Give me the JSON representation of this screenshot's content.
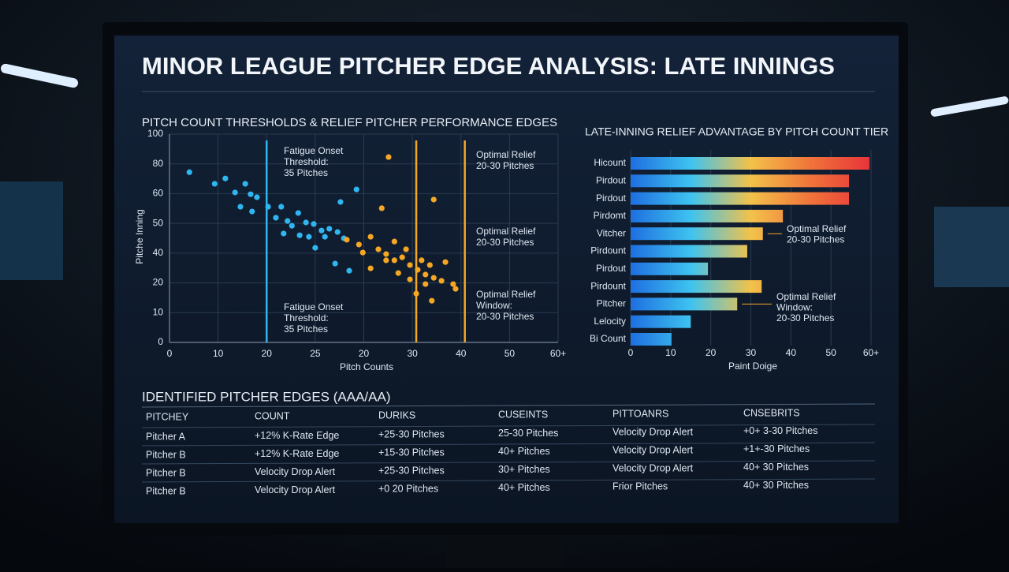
{
  "header": {
    "title": "MINOR LEAGUE PITCHER EDGE ANALYSIS: LATE INNINGS"
  },
  "chart_data": [
    {
      "type": "scatter",
      "title": "PITCH COUNT THRESHOLDS & RELIEF PITCHER PERFORMANCE EDGES",
      "x_label": "Pitch Counts",
      "y_label": "Pitche Inning",
      "xlim": [
        0,
        80
      ],
      "xticks": [
        0,
        10,
        20,
        {
          "value": 30,
          "label": "25"
        },
        {
          "value": 40,
          "label": "20"
        },
        {
          "value": 50,
          "label": "30"
        },
        {
          "value": 60,
          "label": "40"
        },
        {
          "value": 70,
          "label": "50"
        },
        {
          "value": 80,
          "label": "60+"
        }
      ],
      "ylim": [
        0,
        70
      ],
      "yticks": [
        0,
        10,
        20,
        {
          "value": 30,
          "label": "40"
        },
        {
          "value": 40,
          "label": "50"
        },
        {
          "value": 50,
          "label": "60"
        },
        {
          "value": 60,
          "label": "80"
        },
        {
          "value": 70,
          "label": "100"
        }
      ],
      "grid": true,
      "series": [
        {
          "color": "#2fb6f0",
          "x": [
            4.1,
            9.3,
            11.5,
            13.5,
            15.6,
            16.7,
            18.0,
            14.6,
            17.0,
            20.3,
            21.9,
            23.0,
            24.3,
            26.5,
            28.1,
            29.7,
            31.3,
            32.9,
            26.8,
            28.7,
            32.0,
            34.6,
            35.9,
            38.5,
            30.0,
            34.1,
            37.0,
            35.2,
            25.2,
            23.5
          ],
          "y": [
            57.2,
            53.3,
            55.1,
            50.4,
            53.3,
            49.8,
            48.8,
            45.6,
            44.0,
            45.6,
            41.9,
            45.6,
            40.8,
            43.5,
            40.3,
            39.8,
            37.6,
            38.2,
            36.0,
            35.5,
            35.5,
            37.1,
            35.0,
            51.4,
            31.8,
            26.5,
            24.1,
            47.2,
            39.2,
            36.6
          ]
        },
        {
          "color": "#f5a623",
          "x": [
            45.1,
            43.7,
            54.4,
            36.5,
            39.0,
            41.4,
            43.0,
            44.6,
            46.3,
            47.9,
            49.5,
            51.1,
            52.7,
            54.4,
            56.0,
            41.4,
            46.3,
            48.7,
            51.9,
            53.6,
            56.8,
            58.4,
            54.0,
            50.8,
            47.1,
            44.6,
            39.8,
            52.7,
            58.9,
            49.5
          ],
          "y": [
            62.3,
            45.1,
            48.0,
            34.5,
            32.9,
            35.5,
            31.3,
            29.7,
            27.6,
            28.6,
            26.0,
            24.4,
            22.8,
            21.7,
            20.7,
            24.9,
            33.9,
            31.3,
            27.6,
            26.0,
            27.0,
            19.6,
            14.0,
            16.4,
            23.3,
            27.6,
            30.2,
            19.6,
            18.0,
            21.2
          ]
        }
      ],
      "vlines": [
        {
          "x": 20,
          "color": "#2fb6f0"
        },
        {
          "x": 50.8,
          "color": "#f5a623"
        },
        {
          "x": 60.8,
          "color": "#f5a623"
        }
      ],
      "annotations": [
        [
          "Fatigue Onset",
          "Threshold:",
          "35 Pitches"
        ],
        [
          "Fatigue Onset",
          "Threshold:",
          "35 Pitches"
        ],
        [
          "Optimal Relief",
          "20-30 Pitches"
        ],
        [
          "Optimal Relief",
          "20-30 Pitches"
        ],
        [
          "Optimal Relief",
          "Window:",
          "20-30 Pitches"
        ]
      ]
    },
    {
      "type": "hbar",
      "title": "LATE-INNING RELIEF ADVANTAGE BY PITCH COUNT TIER",
      "x_label": "Paint Doige",
      "categories": [
        "Hicount",
        "Pirdout",
        "Pirdout",
        "Pirdomt",
        "Vitcher",
        "Pirdount",
        "Pirdout",
        "Pirdount",
        "Pitcher",
        "Lelocity",
        "Bi Count"
      ],
      "values": [
        59.6,
        54.5,
        54.5,
        38.0,
        33.0,
        29.1,
        19.3,
        32.7,
        26.6,
        15.0,
        10.2
      ],
      "gradient": [
        "#1e6fe0",
        "#3ec3f0",
        "#f3c24a",
        "#f0733a",
        "#e8333a"
      ],
      "xlim": [
        0,
        60
      ],
      "xticks": [
        0,
        10,
        20,
        30,
        40,
        50,
        {
          "value": 60,
          "label": "60+"
        }
      ],
      "annotations": [
        [
          "Optimal Relief",
          "20-30 Pitches"
        ],
        [
          "Optimal Relief",
          "Window:",
          "20-30 Pitches"
        ]
      ]
    }
  ],
  "table": {
    "title": "IDENTIFIED PITCHER EDGES (AAA/AA)",
    "headers": [
      "PITCHEY",
      "COUNT",
      "DURIKS",
      "CUSEINTS",
      "PITTOANRS",
      "CNSEBRITS"
    ],
    "rows": [
      [
        "Pitcher A",
        "+12% K-Rate Edge",
        "+25-30 Pitches",
        "25-30 Pitches",
        "Velocity Drop Alert",
        "+0+ 3-30 Pitches"
      ],
      [
        "Pitcher B",
        "+12% K-Rate Edge",
        "+15-30 Pitches",
        "40+ Pitches",
        "Velocity Drop Alert",
        "+1+-30 Pitches"
      ],
      [
        "Pitcher B",
        "Velocity Drop Alert",
        "+25-30 Pitches",
        "30+ Pitches",
        "Velocity Drop Alert",
        "40+ 30 Pitches"
      ],
      [
        "Pitcher B",
        "Velocity Drop Alert",
        "+0 20 Pitches",
        "40+ Pitches",
        "Frior Pitches",
        "40+ 30 Pitches"
      ]
    ],
    "highlight_color": "#f07a3a",
    "highlight_cells": [
      [
        0,
        5
      ],
      [
        1,
        5
      ]
    ]
  }
}
